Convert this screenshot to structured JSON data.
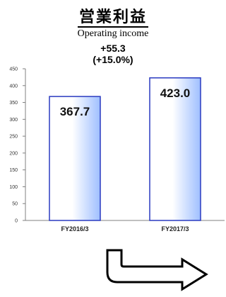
{
  "chart_data": {
    "type": "bar",
    "title": "営業利益",
    "subtitle": "Operating income",
    "annotation_change": "+55.3",
    "annotation_pct": "(+15.0%)",
    "categories": [
      "FY2016/3",
      "FY2017/3"
    ],
    "values": [
      367.7,
      423.0
    ],
    "value_labels": [
      "367.7",
      "423.0"
    ],
    "ylim": [
      0,
      450
    ],
    "yticks": [
      0,
      50,
      100,
      150,
      200,
      250,
      300,
      350,
      400,
      450
    ],
    "xlabel": "",
    "ylabel": "",
    "grid": false
  },
  "colors": {
    "bar_edge": "#2a3ac0",
    "bar_light": "#ffffff",
    "bar_dark": "#9fbfff",
    "axis": "#808080"
  },
  "arrow_icon": "curved-arrow-right-icon"
}
